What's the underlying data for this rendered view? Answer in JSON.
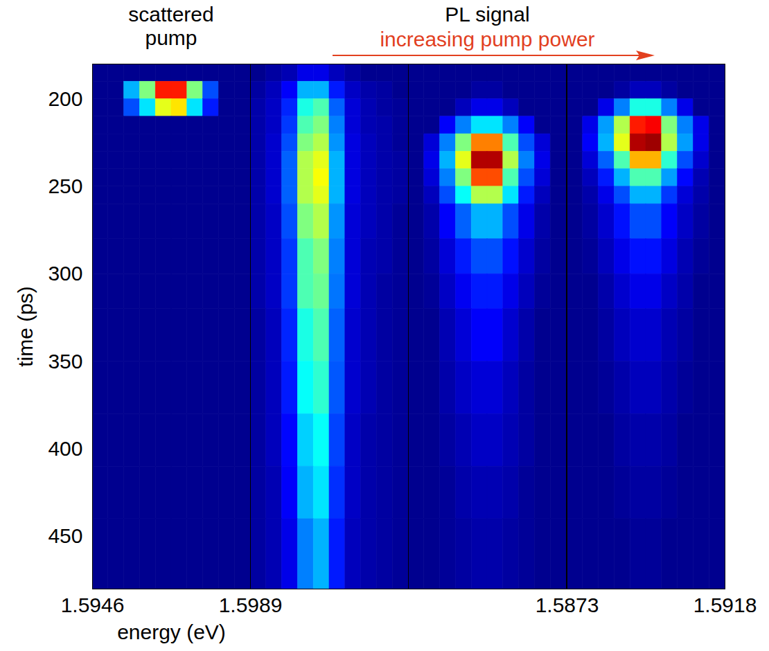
{
  "chart_data": {
    "type": "heatmap",
    "ylim": [
      180,
      480
    ],
    "yticks": [
      200,
      250,
      300,
      350,
      400,
      450
    ],
    "zlim": [
      0,
      1
    ],
    "time_edges": [
      180,
      190,
      200,
      210,
      220,
      230,
      240,
      250,
      260,
      280,
      300,
      320,
      350,
      380,
      410,
      440,
      480
    ],
    "annotations": [
      {
        "text": "PL signal"
      },
      {
        "text": "increasing pump power",
        "color": "#e2401f"
      }
    ],
    "panels": [
      {
        "title": "scattered pump",
        "xlabel": "energy (eV)",
        "ylabel": "time (ps)",
        "xlim": [
          1.5946,
          1.5989
        ],
        "xticks": [
          1.5946,
          1.5989
        ],
        "energy_edges": [
          1.5946,
          1.59503,
          1.59546,
          1.59589,
          1.59632,
          1.59675,
          1.59718,
          1.59761,
          1.59804,
          1.59847,
          1.5989
        ],
        "intensity": [
          [
            0,
            0,
            0,
            0,
            0,
            0,
            0,
            0,
            0,
            0
          ],
          [
            0,
            0,
            0.3,
            0.5,
            0.85,
            0.85,
            0.5,
            0.2,
            0,
            0
          ],
          [
            0,
            0,
            0.2,
            0.35,
            0.6,
            0.65,
            0.35,
            0.15,
            0,
            0
          ],
          [
            0,
            0,
            0,
            0,
            0,
            0,
            0,
            0,
            0,
            0
          ],
          [
            0,
            0,
            0,
            0,
            0,
            0,
            0,
            0,
            0,
            0
          ],
          [
            0,
            0,
            0,
            0,
            0,
            0,
            0,
            0,
            0,
            0
          ],
          [
            0,
            0,
            0,
            0,
            0,
            0,
            0,
            0,
            0,
            0
          ],
          [
            0,
            0,
            0,
            0,
            0,
            0,
            0,
            0,
            0,
            0
          ],
          [
            0,
            0,
            0,
            0,
            0,
            0,
            0,
            0,
            0,
            0
          ],
          [
            0,
            0,
            0,
            0,
            0,
            0,
            0,
            0,
            0,
            0
          ],
          [
            0,
            0,
            0,
            0,
            0,
            0,
            0,
            0,
            0,
            0
          ],
          [
            0,
            0,
            0,
            0,
            0,
            0,
            0,
            0,
            0,
            0
          ],
          [
            0,
            0,
            0,
            0,
            0,
            0,
            0,
            0,
            0,
            0
          ],
          [
            0,
            0,
            0,
            0,
            0,
            0,
            0,
            0,
            0,
            0
          ],
          [
            0,
            0,
            0,
            0,
            0,
            0,
            0,
            0,
            0,
            0
          ],
          [
            0,
            0,
            0,
            0,
            0,
            0,
            0,
            0,
            0,
            0
          ]
        ]
      },
      {
        "tick_labels": false,
        "xlim": [
          1.6,
          1.6045
        ],
        "energy_edges": [
          1.6,
          1.60045,
          1.6009,
          1.60135,
          1.6018,
          1.60225,
          1.6027,
          1.60315,
          1.6036,
          1.60405,
          1.6045
        ],
        "intensity": [
          [
            0,
            0.02,
            0.04,
            0.1,
            0.1,
            0.05,
            0.02,
            0,
            0,
            0
          ],
          [
            0.02,
            0.05,
            0.12,
            0.3,
            0.3,
            0.15,
            0.06,
            0.03,
            0.02,
            0
          ],
          [
            0.03,
            0.06,
            0.16,
            0.4,
            0.45,
            0.22,
            0.08,
            0.04,
            0.02,
            0.01
          ],
          [
            0.03,
            0.06,
            0.18,
            0.45,
            0.5,
            0.25,
            0.08,
            0.04,
            0.03,
            0.01
          ],
          [
            0.03,
            0.07,
            0.2,
            0.5,
            0.55,
            0.27,
            0.09,
            0.05,
            0.03,
            0.01
          ],
          [
            0.03,
            0.07,
            0.22,
            0.55,
            0.6,
            0.3,
            0.09,
            0.05,
            0.03,
            0.02
          ],
          [
            0.03,
            0.07,
            0.22,
            0.55,
            0.62,
            0.3,
            0.09,
            0.05,
            0.03,
            0.02
          ],
          [
            0.03,
            0.07,
            0.22,
            0.55,
            0.6,
            0.3,
            0.09,
            0.05,
            0.03,
            0.02
          ],
          [
            0.03,
            0.06,
            0.2,
            0.5,
            0.55,
            0.27,
            0.08,
            0.05,
            0.03,
            0.01
          ],
          [
            0.03,
            0.06,
            0.18,
            0.45,
            0.5,
            0.25,
            0.08,
            0.04,
            0.03,
            0.01
          ],
          [
            0.03,
            0.06,
            0.18,
            0.45,
            0.48,
            0.24,
            0.08,
            0.04,
            0.02,
            0.01
          ],
          [
            0.02,
            0.05,
            0.16,
            0.4,
            0.45,
            0.22,
            0.07,
            0.04,
            0.02,
            0.01
          ],
          [
            0.02,
            0.05,
            0.15,
            0.38,
            0.42,
            0.21,
            0.07,
            0.04,
            0.02,
            0.01
          ],
          [
            0.02,
            0.05,
            0.13,
            0.33,
            0.38,
            0.19,
            0.06,
            0.03,
            0.02,
            0.01
          ],
          [
            0.02,
            0.04,
            0.12,
            0.3,
            0.35,
            0.17,
            0.06,
            0.03,
            0.02,
            0.01
          ],
          [
            0.02,
            0.04,
            0.1,
            0.25,
            0.3,
            0.15,
            0.05,
            0.03,
            0.02,
            0.01
          ]
        ]
      },
      {
        "tick_labels": false,
        "xlim": [
          1.589,
          1.5935
        ],
        "energy_edges": [
          1.589,
          1.58945,
          1.5899,
          1.59035,
          1.5908,
          1.59125,
          1.5917,
          1.59215,
          1.5926,
          1.59305,
          1.5935
        ],
        "intensity": [
          [
            0,
            0,
            0,
            0,
            0,
            0,
            0,
            0,
            0,
            0
          ],
          [
            0,
            0,
            0,
            0,
            0.02,
            0.02,
            0,
            0,
            0,
            0
          ],
          [
            0,
            0,
            0,
            0.05,
            0.1,
            0.1,
            0.05,
            0,
            0,
            0
          ],
          [
            0,
            0,
            0.12,
            0.25,
            0.35,
            0.35,
            0.25,
            0.12,
            0,
            0
          ],
          [
            0,
            0.08,
            0.25,
            0.5,
            0.75,
            0.75,
            0.45,
            0.2,
            0.08,
            0
          ],
          [
            0,
            0.1,
            0.3,
            0.6,
            0.95,
            0.95,
            0.55,
            0.25,
            0.1,
            0
          ],
          [
            0,
            0.08,
            0.25,
            0.5,
            0.8,
            0.8,
            0.45,
            0.2,
            0.08,
            0
          ],
          [
            0,
            0.05,
            0.2,
            0.38,
            0.55,
            0.55,
            0.35,
            0.15,
            0.05,
            0
          ],
          [
            0,
            0.03,
            0.12,
            0.22,
            0.3,
            0.3,
            0.2,
            0.1,
            0.03,
            0
          ],
          [
            0,
            0.02,
            0.08,
            0.15,
            0.2,
            0.2,
            0.14,
            0.07,
            0.02,
            0
          ],
          [
            0,
            0.01,
            0.06,
            0.11,
            0.15,
            0.15,
            0.1,
            0.05,
            0.01,
            0
          ],
          [
            0,
            0,
            0.04,
            0.08,
            0.12,
            0.12,
            0.07,
            0.03,
            0,
            0
          ],
          [
            0,
            0,
            0.03,
            0.06,
            0.08,
            0.08,
            0.05,
            0.02,
            0,
            0
          ],
          [
            0,
            0,
            0.02,
            0.04,
            0.06,
            0.06,
            0.04,
            0.02,
            0,
            0
          ],
          [
            0,
            0,
            0.01,
            0.03,
            0.04,
            0.04,
            0.03,
            0.01,
            0,
            0
          ],
          [
            0,
            0,
            0.01,
            0.02,
            0.03,
            0.03,
            0.02,
            0.01,
            0,
            0
          ]
        ]
      },
      {
        "tick_labels": "x",
        "xlim": [
          1.5873,
          1.5918
        ],
        "xticks": [
          1.5873,
          1.5918
        ],
        "energy_edges": [
          1.5873,
          1.58775,
          1.5882,
          1.58865,
          1.5891,
          1.58955,
          1.59,
          1.59045,
          1.5909,
          1.59135,
          1.5918
        ],
        "intensity": [
          [
            0,
            0,
            0,
            0,
            0,
            0,
            0,
            0,
            0,
            0
          ],
          [
            0,
            0,
            0,
            0.02,
            0.05,
            0.05,
            0.02,
            0,
            0,
            0
          ],
          [
            0,
            0,
            0.1,
            0.25,
            0.4,
            0.4,
            0.25,
            0.1,
            0,
            0
          ],
          [
            0,
            0.1,
            0.28,
            0.55,
            0.85,
            0.88,
            0.5,
            0.25,
            0.1,
            0
          ],
          [
            0,
            0.12,
            0.3,
            0.6,
            0.95,
            0.97,
            0.55,
            0.28,
            0.1,
            0
          ],
          [
            0,
            0.08,
            0.22,
            0.45,
            0.7,
            0.7,
            0.42,
            0.2,
            0.07,
            0
          ],
          [
            0,
            0.05,
            0.15,
            0.3,
            0.45,
            0.45,
            0.28,
            0.13,
            0.04,
            0
          ],
          [
            0,
            0.03,
            0.1,
            0.2,
            0.3,
            0.3,
            0.18,
            0.08,
            0.03,
            0
          ],
          [
            0,
            0.02,
            0.07,
            0.14,
            0.2,
            0.2,
            0.12,
            0.06,
            0.02,
            0
          ],
          [
            0,
            0.01,
            0.05,
            0.1,
            0.14,
            0.14,
            0.09,
            0.04,
            0.01,
            0
          ],
          [
            0,
            0,
            0.03,
            0.07,
            0.1,
            0.1,
            0.06,
            0.03,
            0,
            0
          ],
          [
            0,
            0,
            0.02,
            0.05,
            0.07,
            0.07,
            0.04,
            0.02,
            0,
            0
          ],
          [
            0,
            0,
            0.01,
            0.03,
            0.05,
            0.05,
            0.03,
            0.01,
            0,
            0
          ],
          [
            0,
            0,
            0,
            0.02,
            0.03,
            0.03,
            0.02,
            0,
            0,
            0
          ],
          [
            0,
            0,
            0,
            0.01,
            0.02,
            0.02,
            0.01,
            0,
            0,
            0
          ],
          [
            0,
            0,
            0,
            0,
            0.01,
            0.01,
            0,
            0,
            0,
            0
          ]
        ]
      }
    ]
  }
}
